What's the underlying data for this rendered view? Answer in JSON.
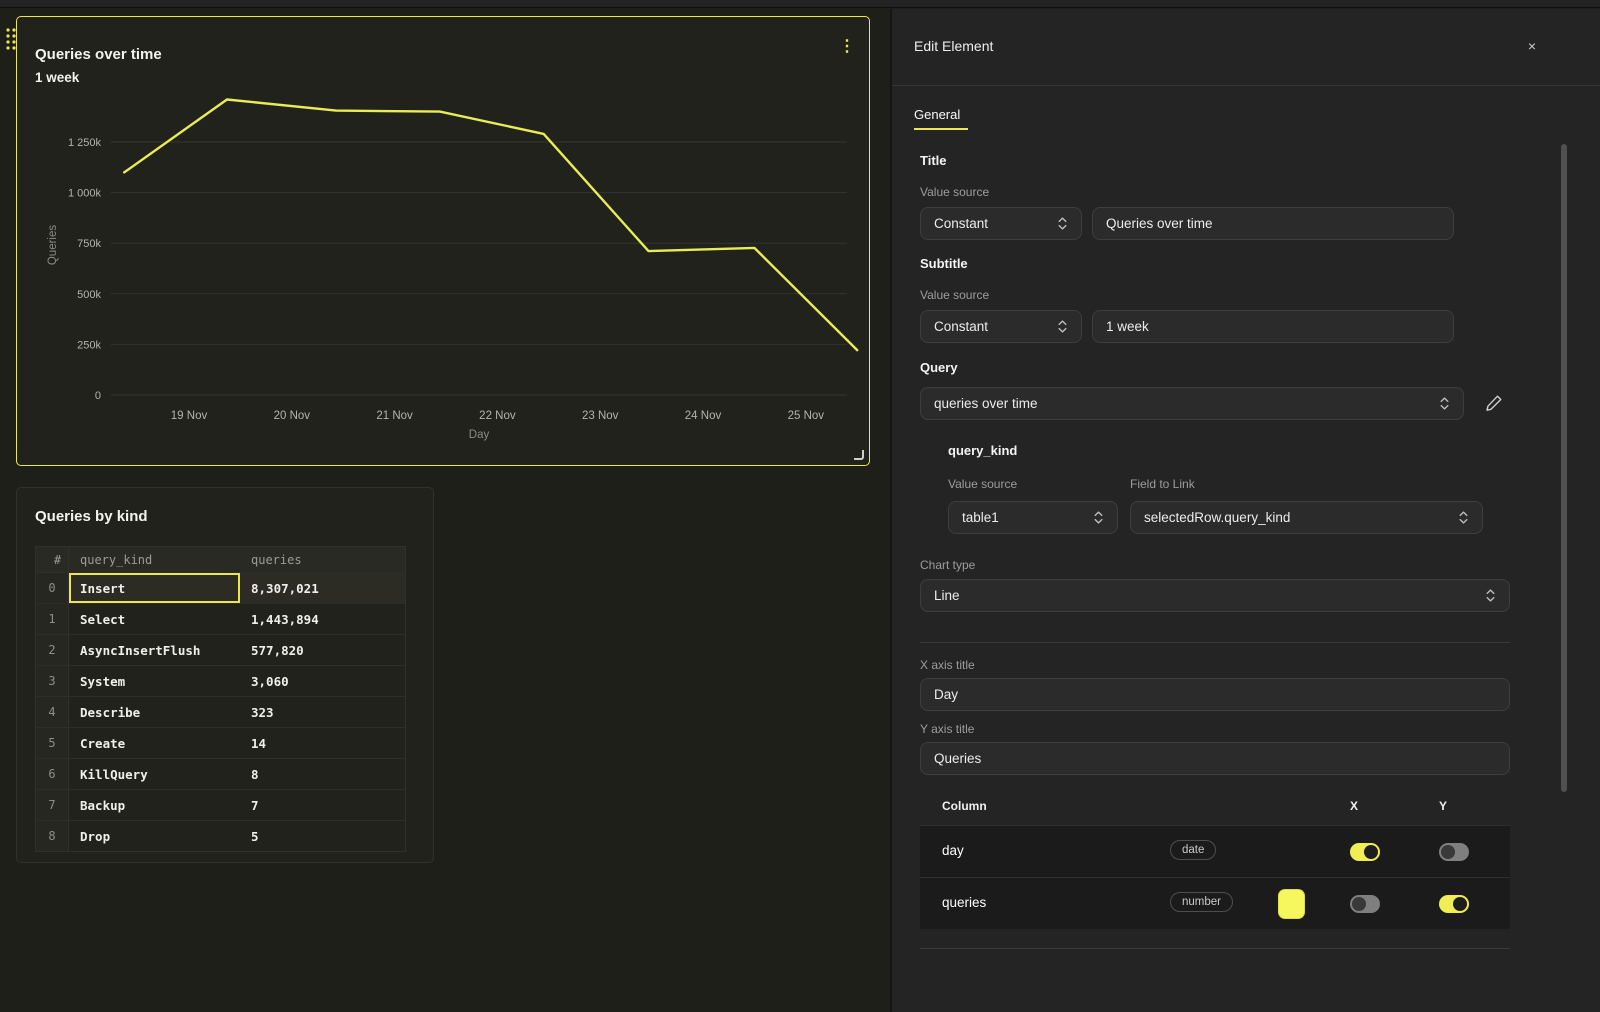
{
  "colors": {
    "accent": "#f0ee54",
    "selected_panel_border": "#e9e94f",
    "line_series": "#e9ed55",
    "swatch": "#f6f65e",
    "toggle_on": "#f0ee54"
  },
  "chart_data": {
    "type": "line",
    "title": "Queries over time",
    "subtitle": "1 week",
    "xlabel": "Day",
    "ylabel": "Queries",
    "ylim": [
      0,
      1500000
    ],
    "grid": true,
    "legend": false,
    "x_ticks": [
      {
        "day": 19,
        "label": "19 Nov"
      },
      {
        "day": 20,
        "label": "20 Nov"
      },
      {
        "day": 21,
        "label": "21 Nov"
      },
      {
        "day": 22,
        "label": "22 Nov"
      },
      {
        "day": 23,
        "label": "23 Nov"
      },
      {
        "day": 24,
        "label": "24 Nov"
      },
      {
        "day": 25,
        "label": "25 Nov"
      }
    ],
    "y_ticks": [
      {
        "value": 0,
        "label": "0"
      },
      {
        "value": 250000,
        "label": "250k"
      },
      {
        "value": 500000,
        "label": "500k"
      },
      {
        "value": 750000,
        "label": "750k"
      },
      {
        "value": 1000000,
        "label": "1 000k"
      },
      {
        "value": 1250000,
        "label": "1 250k"
      }
    ],
    "series": [
      {
        "name": "queries",
        "color": "#e9ed55",
        "points": [
          {
            "day": 18.37,
            "value": 1100000
          },
          {
            "day": 19.37,
            "value": 1460000
          },
          {
            "day": 20.43,
            "value": 1405000
          },
          {
            "day": 21.44,
            "value": 1400000
          },
          {
            "day": 22.45,
            "value": 1290000
          },
          {
            "day": 23.47,
            "value": 711000
          },
          {
            "day": 24.5,
            "value": 727000
          },
          {
            "day": 25.5,
            "value": 222000
          }
        ]
      }
    ]
  },
  "canvas": {
    "chart_panel": {
      "title": "Queries over time",
      "subtitle": "1 week",
      "menu_icon": "⋮"
    },
    "table_panel": {
      "title": "Queries by kind",
      "columns": [
        "#",
        "query_kind",
        "queries"
      ],
      "rows": [
        [
          "0",
          "Insert",
          "8,307,021"
        ],
        [
          "1",
          "Select",
          "1,443,894"
        ],
        [
          "2",
          "AsyncInsertFlush",
          "577,820"
        ],
        [
          "3",
          "System",
          "3,060"
        ],
        [
          "4",
          "Describe",
          "323"
        ],
        [
          "5",
          "Create",
          "14"
        ],
        [
          "6",
          "KillQuery",
          "8"
        ],
        [
          "7",
          "Backup",
          "7"
        ],
        [
          "8",
          "Drop",
          "5"
        ]
      ],
      "selected": {
        "row": 0,
        "column": "query_kind"
      }
    }
  },
  "editor": {
    "title": "Edit Element",
    "close_icon": "×",
    "tabs": [
      {
        "label": "General",
        "active": true
      }
    ],
    "title_section": {
      "heading": "Title",
      "value_source_label": "Value source",
      "source": "Constant",
      "value": "Queries over time"
    },
    "subtitle_section": {
      "heading": "Subtitle",
      "value_source_label": "Value source",
      "source": "Constant",
      "value": "1 week"
    },
    "query_section": {
      "heading": "Query",
      "selected": "queries over time"
    },
    "query_kind_section": {
      "heading": "query_kind",
      "value_source_label": "Value source",
      "field_label": "Field to Link",
      "source": "table1",
      "field": "selectedRow.query_kind"
    },
    "chart_type": {
      "label": "Chart type",
      "value": "Line"
    },
    "x_axis": {
      "label": "X axis title",
      "value": "Day"
    },
    "y_axis": {
      "label": "Y axis title",
      "value": "Queries"
    },
    "columns_table": {
      "header": {
        "column": "Column",
        "x": "X",
        "y": "Y"
      },
      "rows": [
        {
          "name": "day",
          "type": "date",
          "swatch": null,
          "x_on": true,
          "y_on": false
        },
        {
          "name": "queries",
          "type": "number",
          "swatch": "#f6f65e",
          "x_on": false,
          "y_on": true
        }
      ]
    }
  }
}
